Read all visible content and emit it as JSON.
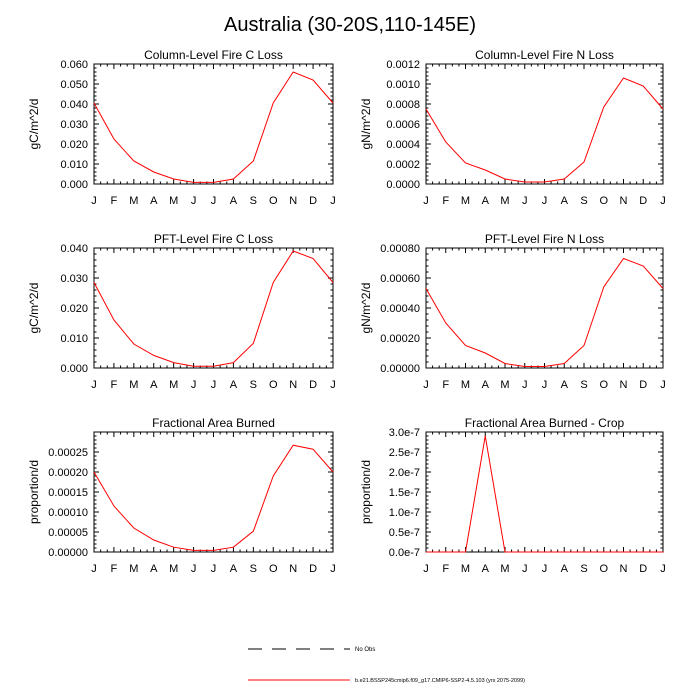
{
  "figure": {
    "title": "Australia (30-20S,110-145E)",
    "legend": [
      {
        "label": "No Obs",
        "style": "dashed",
        "color": "#000000"
      },
      {
        "label": "b.e21.BSSP245cmip6.f09_g17.CMIP6-SSP2-4.5.103 (yrs 2075-2099)",
        "style": "solid",
        "color": "#ff0000"
      }
    ]
  },
  "chart_data": [
    {
      "type": "line",
      "title": "Column-Level Fire C Loss",
      "ylabel": "gC/m^2/d",
      "xlabel": "",
      "categories": [
        "J",
        "F",
        "M",
        "A",
        "M",
        "J",
        "J",
        "A",
        "S",
        "O",
        "N",
        "D",
        "J"
      ],
      "ylim": [
        0,
        0.06
      ],
      "yticks": [
        0,
        0.01,
        0.02,
        0.03,
        0.04,
        0.05,
        0.06
      ],
      "ytick_labels": [
        "0.000",
        "0.010",
        "0.020",
        "0.030",
        "0.040",
        "0.050",
        "0.060"
      ],
      "series": [
        {
          "name": "b.e21.BSSP245cmip6.f09_g17.CMIP6-SSP2-4.5.103 (yrs 2075-2099)",
          "color": "#ff0000",
          "values": [
            0.0405,
            0.0225,
            0.0115,
            0.006,
            0.0025,
            0.0008,
            0.0008,
            0.0025,
            0.0115,
            0.0405,
            0.056,
            0.052,
            0.0405
          ]
        }
      ]
    },
    {
      "type": "line",
      "title": "Column-Level Fire N Loss",
      "ylabel": "gN/m^2/d",
      "xlabel": "",
      "categories": [
        "J",
        "F",
        "M",
        "A",
        "M",
        "J",
        "J",
        "A",
        "S",
        "O",
        "N",
        "D",
        "J"
      ],
      "ylim": [
        0,
        0.0012
      ],
      "yticks": [
        0,
        0.0002,
        0.0004,
        0.0006,
        0.0008,
        0.001,
        0.0012
      ],
      "ytick_labels": [
        "0.0000",
        "0.0002",
        "0.0004",
        "0.0006",
        "0.0008",
        "0.0010",
        "0.0012"
      ],
      "series": [
        {
          "name": "b.e21.BSSP245cmip6.f09_g17.CMIP6-SSP2-4.5.103 (yrs 2075-2099)",
          "color": "#ff0000",
          "values": [
            0.00075,
            0.00042,
            0.00021,
            0.00014,
            5e-05,
            2e-05,
            2e-05,
            5e-05,
            0.00022,
            0.00077,
            0.00106,
            0.00098,
            0.00075
          ]
        }
      ]
    },
    {
      "type": "line",
      "title": "PFT-Level Fire C Loss",
      "ylabel": "gC/m^2/d",
      "xlabel": "",
      "categories": [
        "J",
        "F",
        "M",
        "A",
        "M",
        "J",
        "J",
        "A",
        "S",
        "O",
        "N",
        "D",
        "J"
      ],
      "ylim": [
        0,
        0.04
      ],
      "yticks": [
        0,
        0.01,
        0.02,
        0.03,
        0.04
      ],
      "ytick_labels": [
        "0.000",
        "0.010",
        "0.020",
        "0.030",
        "0.040"
      ],
      "series": [
        {
          "name": "b.e21.BSSP245cmip6.f09_g17.CMIP6-SSP2-4.5.103 (yrs 2075-2099)",
          "color": "#ff0000",
          "values": [
            0.0285,
            0.016,
            0.008,
            0.0042,
            0.0018,
            0.0006,
            0.0006,
            0.0018,
            0.0082,
            0.0285,
            0.039,
            0.0365,
            0.0285
          ]
        }
      ]
    },
    {
      "type": "line",
      "title": "PFT-Level Fire N Loss",
      "ylabel": "gN/m^2/d",
      "xlabel": "",
      "categories": [
        "J",
        "F",
        "M",
        "A",
        "M",
        "J",
        "J",
        "A",
        "S",
        "O",
        "N",
        "D",
        "J"
      ],
      "ylim": [
        0,
        0.0008
      ],
      "yticks": [
        0,
        0.0002,
        0.0004,
        0.0006,
        0.0008
      ],
      "ytick_labels": [
        "0.00000",
        "0.00020",
        "0.00040",
        "0.00060",
        "0.00080"
      ],
      "series": [
        {
          "name": "b.e21.BSSP245cmip6.f09_g17.CMIP6-SSP2-4.5.103 (yrs 2075-2099)",
          "color": "#ff0000",
          "values": [
            0.00053,
            0.0003,
            0.00015,
            0.0001,
            3e-05,
            1e-05,
            1e-05,
            3e-05,
            0.00015,
            0.00054,
            0.00073,
            0.00068,
            0.00053
          ]
        }
      ]
    },
    {
      "type": "line",
      "title": "Fractional Area Burned",
      "ylabel": "proportion/d",
      "xlabel": "",
      "categories": [
        "J",
        "F",
        "M",
        "A",
        "M",
        "J",
        "J",
        "A",
        "S",
        "O",
        "N",
        "D",
        "J"
      ],
      "ylim": [
        0,
        0.0003
      ],
      "yticks": [
        0,
        5e-05,
        0.0001,
        0.00015,
        0.0002,
        0.00025
      ],
      "ytick_labels": [
        "0.00000",
        "0.00005",
        "0.00010",
        "0.00015",
        "0.00020",
        "0.00025"
      ],
      "series": [
        {
          "name": "b.e21.BSSP245cmip6.f09_g17.CMIP6-SSP2-4.5.103 (yrs 2075-2099)",
          "color": "#ff0000",
          "values": [
            0.0002,
            0.000115,
            6e-05,
            3e-05,
            1.2e-05,
            4e-06,
            4e-06,
            1.2e-05,
            5.2e-05,
            0.00019,
            0.000267,
            0.000257,
            0.0002
          ]
        }
      ]
    },
    {
      "type": "line",
      "title": "Fractional Area Burned - Crop",
      "ylabel": "proportion/d",
      "xlabel": "",
      "categories": [
        "J",
        "F",
        "M",
        "A",
        "M",
        "J",
        "J",
        "A",
        "S",
        "O",
        "N",
        "D",
        "J"
      ],
      "ylim": [
        0,
        3e-07
      ],
      "yticks": [
        0,
        5e-08,
        1e-07,
        1.5e-07,
        2e-07,
        2.5e-07,
        3e-07
      ],
      "ytick_labels": [
        "0.0e-7",
        "0.5e-7",
        "1.0e-7",
        "1.5e-7",
        "2.0e-7",
        "2.5e-7",
        "3.0e-7"
      ],
      "series": [
        {
          "name": "b.e21.BSSP245cmip6.f09_g17.CMIP6-SSP2-4.5.103 (yrs 2075-2099)",
          "color": "#ff0000",
          "values": [
            0,
            0,
            0,
            2.9e-07,
            0,
            0,
            0,
            0,
            0,
            0,
            0,
            0,
            0
          ]
        }
      ]
    }
  ]
}
